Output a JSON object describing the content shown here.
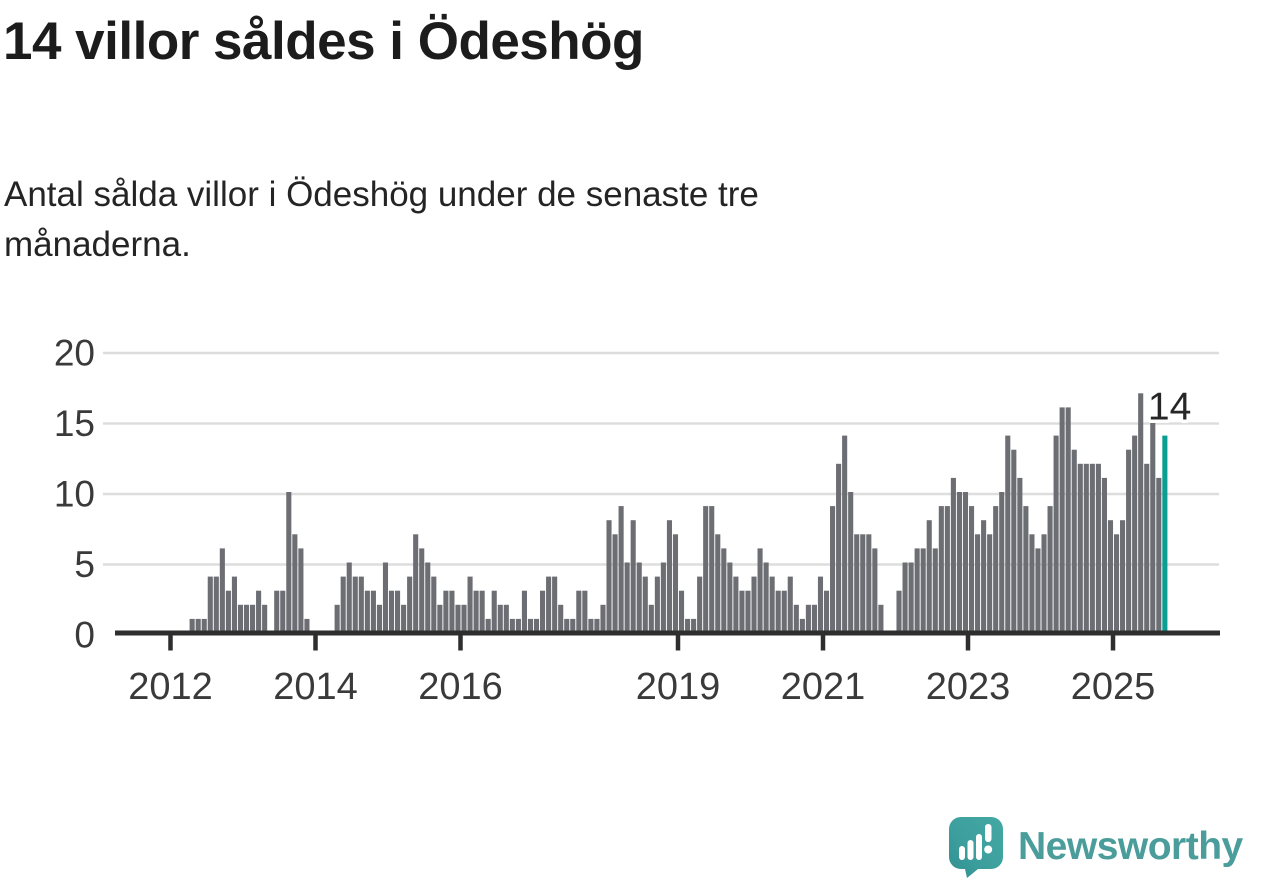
{
  "header": {
    "title": "14 villor såldes i Ödeshög",
    "subtitle_line1": "Antal sålda villor i Ödeshög under de senaste tre",
    "subtitle_line2": "månaderna."
  },
  "chart_data": {
    "type": "bar",
    "title": "14 villor såldes i Ödeshög",
    "subtitle": "Antal sålda villor i Ödeshög under de senaste tre månaderna.",
    "ylabel": "",
    "xlabel": "",
    "ylim": [
      0,
      20
    ],
    "y_ticks": [
      0,
      5,
      10,
      15,
      20
    ],
    "x_tick_years": [
      2012,
      2014,
      2016,
      2019,
      2021,
      2023,
      2025
    ],
    "x_start_month": "2012-04",
    "x_end_month": "2025-09",
    "grid": "horizontal",
    "annotation": "14",
    "highlight_last_bar": true,
    "colors": {
      "bar": "#6d6e73",
      "highlight": "#0b9e92",
      "axis": "#2e2e2e",
      "gridline": "#dddddd",
      "tick_label": "#3a3a3a",
      "annotation_text": "#262626",
      "brand_teal": "#4a9d9a"
    },
    "values": [
      1,
      1,
      1,
      4,
      4,
      6,
      3,
      4,
      2,
      2,
      2,
      3,
      2,
      0,
      3,
      3,
      10,
      7,
      6,
      1,
      0,
      0,
      0,
      0,
      2,
      4,
      5,
      4,
      4,
      3,
      3,
      2,
      5,
      3,
      3,
      2,
      4,
      7,
      6,
      5,
      4,
      2,
      3,
      3,
      2,
      2,
      4,
      3,
      3,
      1,
      3,
      2,
      2,
      1,
      1,
      3,
      1,
      1,
      3,
      4,
      4,
      2,
      1,
      1,
      3,
      3,
      1,
      1,
      2,
      8,
      7,
      9,
      5,
      8,
      5,
      4,
      2,
      4,
      5,
      8,
      7,
      3,
      1,
      1,
      4,
      9,
      9,
      7,
      6,
      5,
      4,
      3,
      3,
      4,
      6,
      5,
      4,
      3,
      3,
      4,
      2,
      1,
      2,
      2,
      4,
      3,
      9,
      12,
      14,
      10,
      7,
      7,
      7,
      6,
      2,
      0,
      0,
      3,
      5,
      5,
      6,
      6,
      8,
      6,
      9,
      9,
      11,
      10,
      10,
      9,
      7,
      8,
      7,
      9,
      10,
      14,
      13,
      11,
      9,
      7,
      6,
      7,
      9,
      14,
      16,
      16,
      13,
      12,
      12,
      12,
      12,
      11,
      8,
      7,
      8,
      13,
      14,
      17,
      12,
      15,
      11,
      14
    ]
  },
  "footer": {
    "brand": "Newsworthy"
  }
}
